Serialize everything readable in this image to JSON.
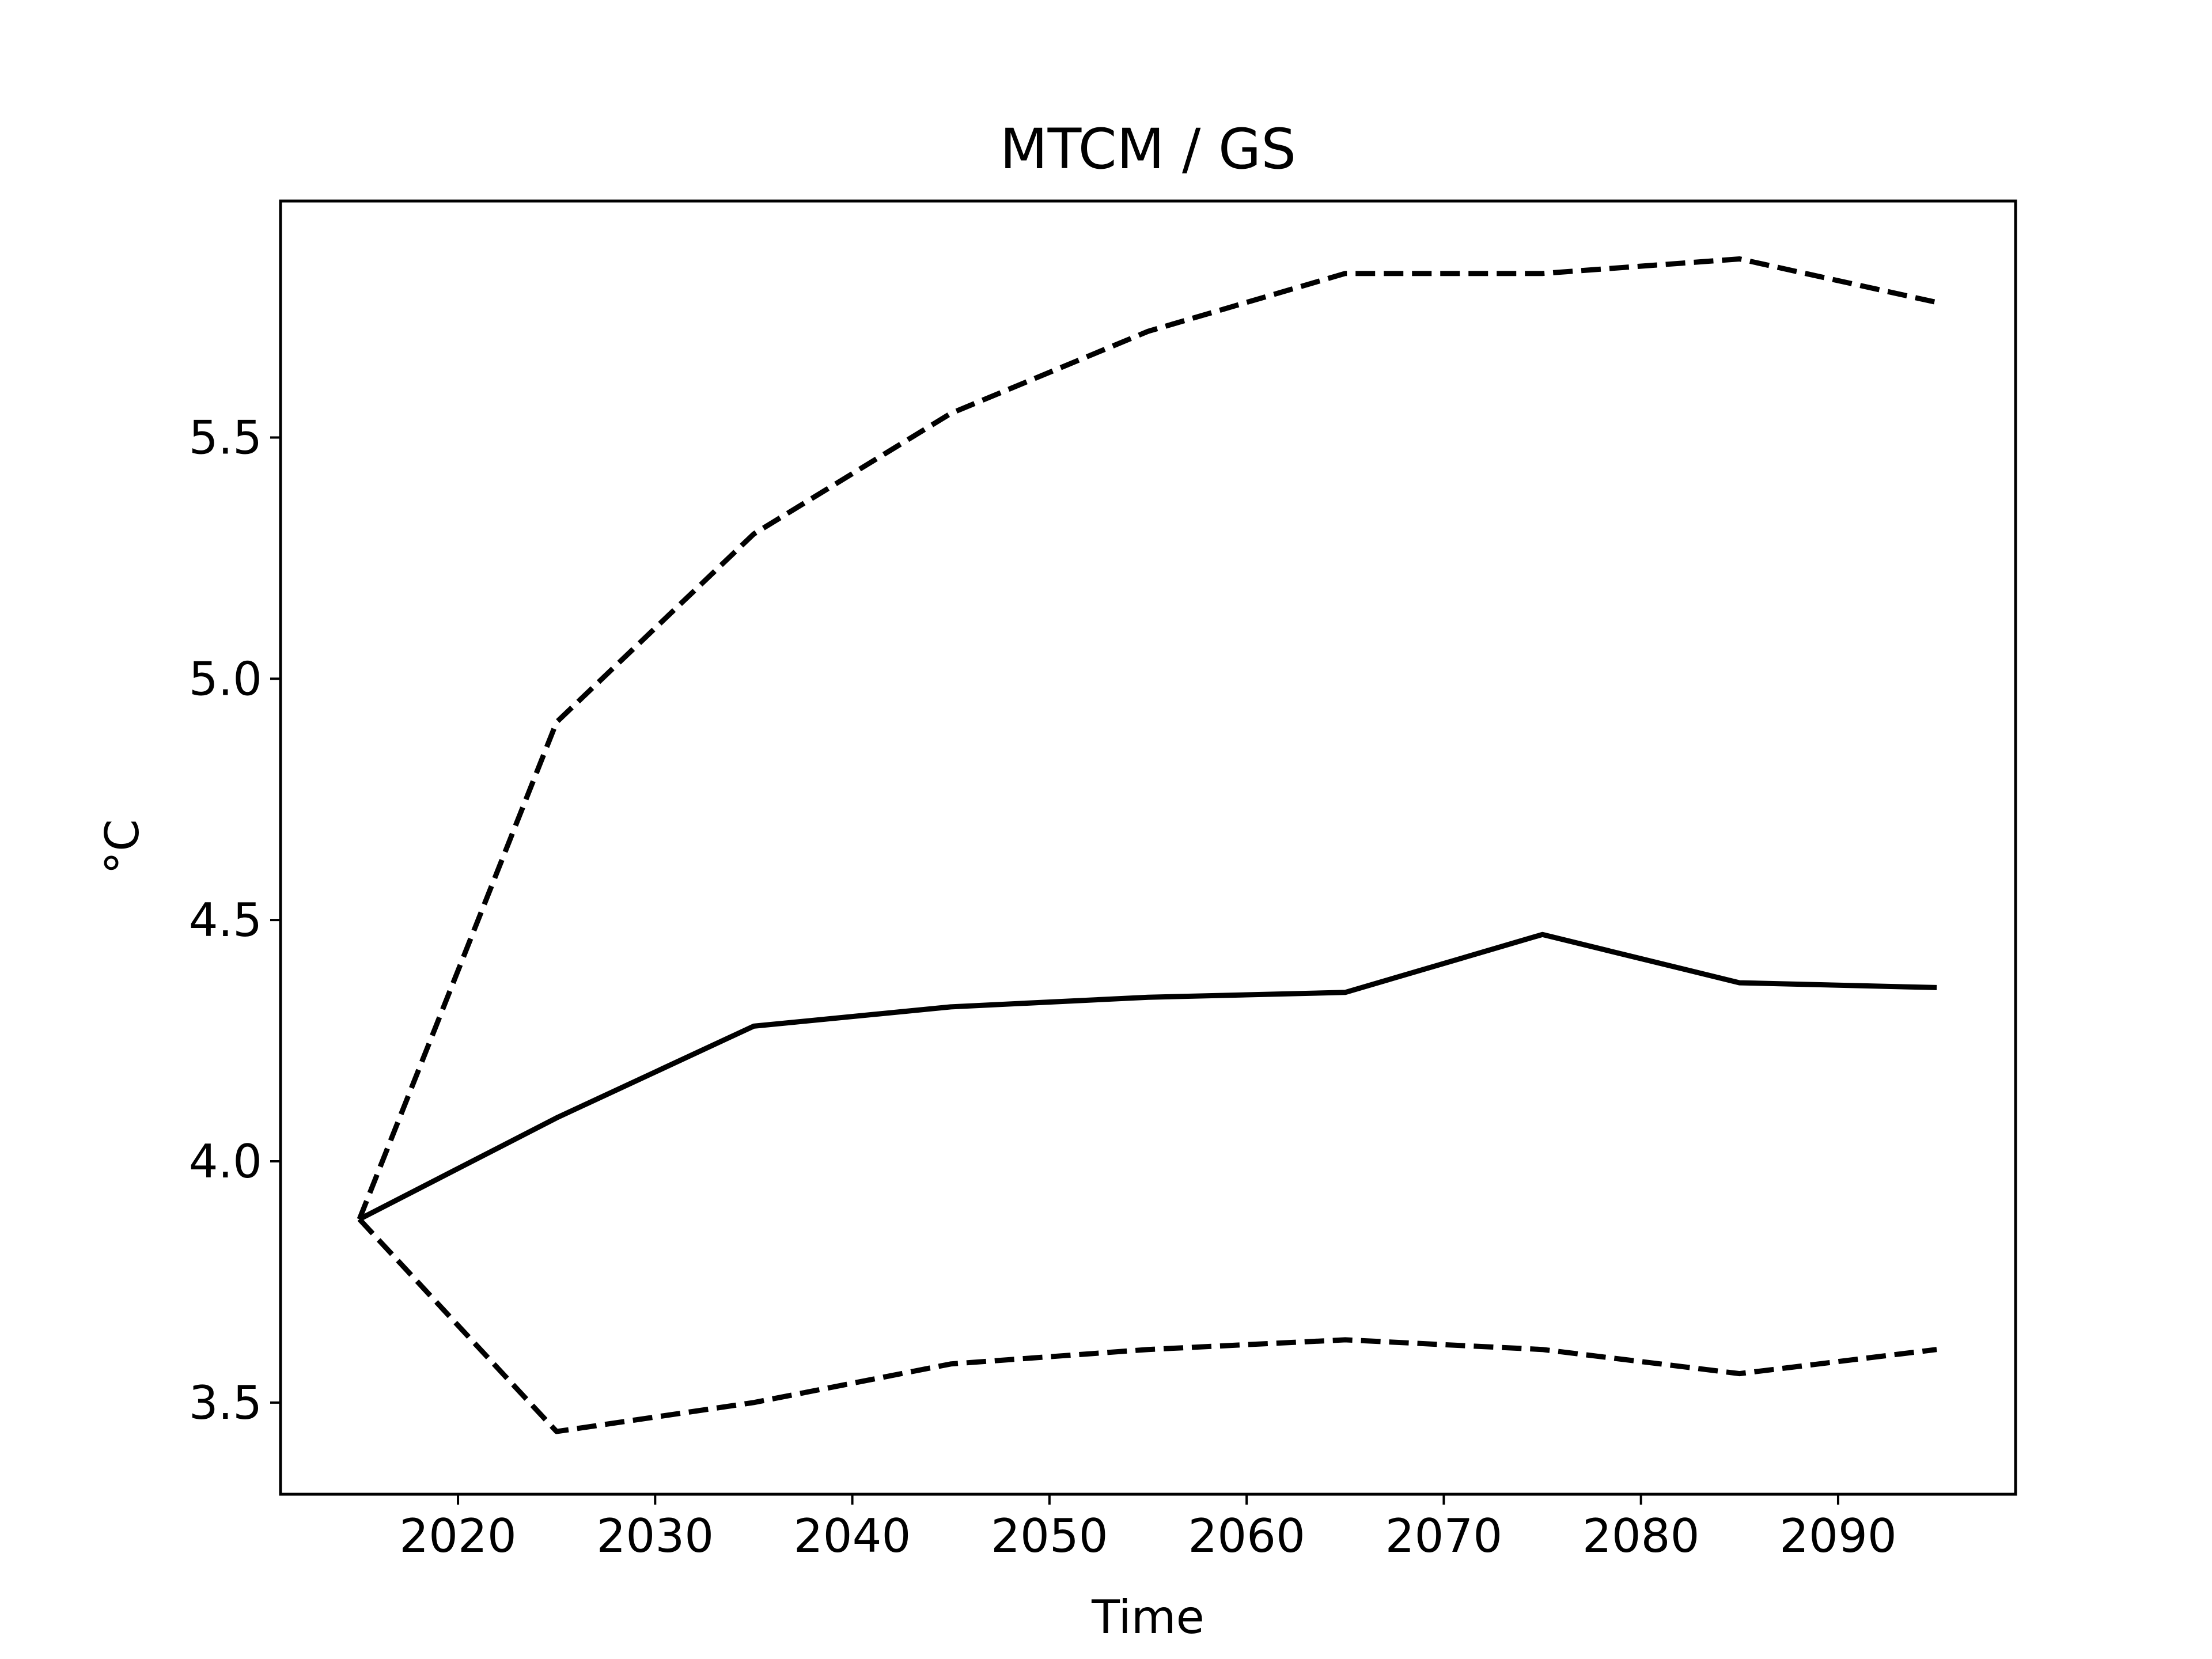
{
  "chart_data": {
    "type": "line",
    "title": "MTCM / GS",
    "xlabel": "Time",
    "ylabel": "°C",
    "xlim": [
      2011,
      2099
    ],
    "ylim": [
      3.31,
      5.99
    ],
    "xticks": [
      2020,
      2030,
      2040,
      2050,
      2060,
      2070,
      2080,
      2090
    ],
    "yticks": [
      3.5,
      4.0,
      4.5,
      5.0,
      5.5
    ],
    "ytick_labels": [
      "3.5",
      "4.0",
      "4.5",
      "5.0",
      "5.5"
    ],
    "grid": false,
    "x": [
      2015,
      2025,
      2035,
      2045,
      2055,
      2065,
      2075,
      2085,
      2095
    ],
    "series": [
      {
        "style": "dashed",
        "color": "#000000",
        "values": [
          3.88,
          4.91,
          5.3,
          5.55,
          5.72,
          5.84,
          5.84,
          5.87,
          5.78
        ]
      },
      {
        "style": "solid",
        "color": "#000000",
        "values": [
          3.88,
          4.09,
          4.28,
          4.32,
          4.34,
          4.35,
          4.47,
          4.37,
          4.36
        ]
      },
      {
        "style": "dashed",
        "color": "#000000",
        "values": [
          3.88,
          3.44,
          3.5,
          3.58,
          3.61,
          3.63,
          3.61,
          3.56,
          3.61
        ]
      }
    ]
  }
}
